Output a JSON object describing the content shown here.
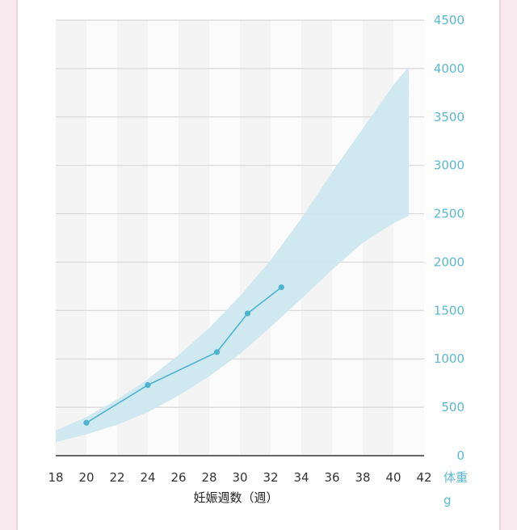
{
  "chart_data": {
    "type": "line",
    "xlabel": "妊娠週数（週）",
    "ylabel": "体重",
    "ylabel_unit": "g",
    "xlim": [
      18,
      42
    ],
    "ylim": [
      0,
      4500
    ],
    "x_ticks": [
      18,
      20,
      22,
      24,
      26,
      28,
      30,
      32,
      34,
      36,
      38,
      40,
      42
    ],
    "y_ticks": [
      0,
      500,
      1000,
      1500,
      2000,
      2500,
      3000,
      3500,
      4000,
      4500
    ],
    "grid": true,
    "band_color": "#cde8f0",
    "line_color": "#4db3cf",
    "series": [
      {
        "x": [
          20,
          24,
          28.5,
          30.5,
          32.7
        ],
        "y": [
          340,
          730,
          1070,
          1470,
          1740
        ]
      }
    ],
    "range_band": {
      "x": [
        18,
        20,
        22,
        24,
        26,
        28,
        30,
        32,
        34,
        36,
        38,
        40,
        41
      ],
      "upper": [
        260,
        400,
        580,
        790,
        1040,
        1320,
        1650,
        2020,
        2450,
        2930,
        3380,
        3830,
        4020
      ],
      "lower": [
        140,
        220,
        320,
        450,
        620,
        820,
        1050,
        1330,
        1620,
        1920,
        2200,
        2400,
        2480
      ]
    }
  }
}
